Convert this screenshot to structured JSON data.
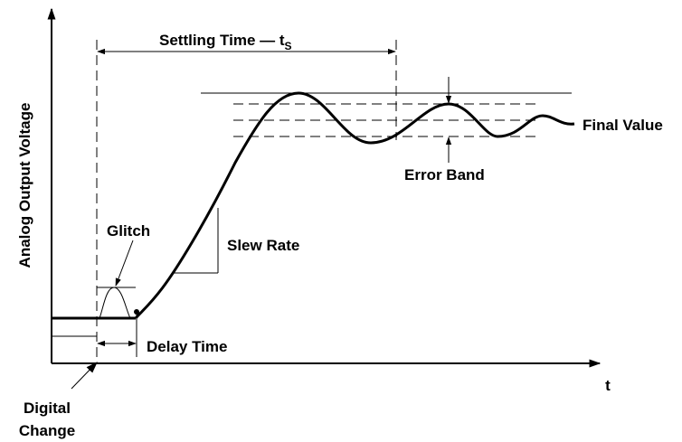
{
  "labels": {
    "settling_time": "Settling Time — t",
    "settling_time_subscript": "S",
    "y_axis": "Analog Output Voltage",
    "x_axis": "t",
    "final_value": "Final Value",
    "error_band": "Error Band",
    "glitch": "Glitch",
    "slew_rate": "Slew Rate",
    "delay_time": "Delay Time",
    "digital_change_line1": "Digital",
    "digital_change_line2": "Change"
  },
  "colors": {
    "ink": "#000000",
    "background": "#ffffff"
  }
}
